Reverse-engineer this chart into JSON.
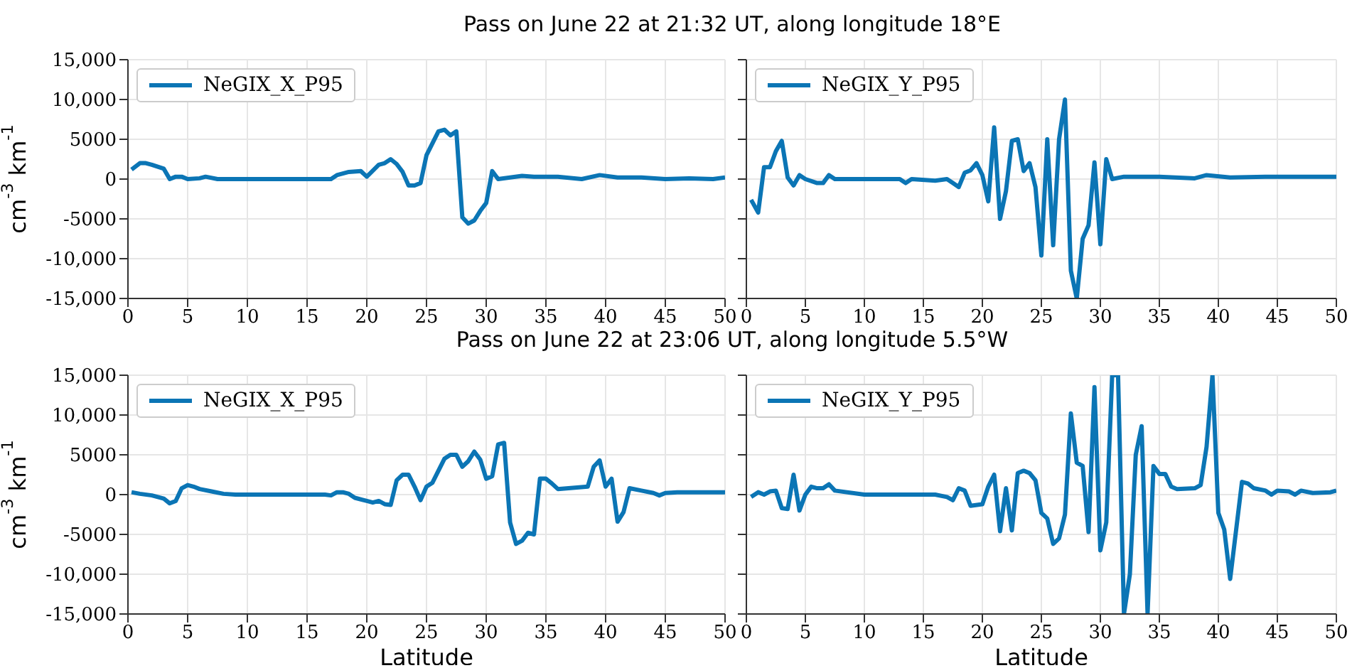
{
  "chart_data": [
    {
      "type": "line",
      "title": "Pass on June 22 at 21:32 UT, along longitude 18°E",
      "ylabel": "cm$^{-3}$ km$^{-1}$",
      "xlim": [
        0,
        50
      ],
      "xticks": [
        0,
        5,
        10,
        15,
        20,
        25,
        30,
        35,
        40,
        45,
        50
      ],
      "ylim": [
        -15000,
        15000
      ],
      "yticks": [
        {
          "value": -15000,
          "label": "-15,000"
        },
        {
          "value": -10000,
          "label": "-10,000"
        },
        -5000,
        0,
        5000,
        {
          "value": 10000,
          "label": "10,000"
        },
        {
          "value": 15000,
          "label": "15,000"
        }
      ],
      "grid": true,
      "legend": "top left",
      "x": [
        0.3,
        1,
        1.5,
        2,
        3,
        3.5,
        4,
        4.5,
        5,
        6,
        6.5,
        7.5,
        10,
        13,
        15,
        17,
        17.5,
        18.5,
        19.5,
        20,
        21,
        21.5,
        22,
        22.5,
        23,
        23.5,
        24,
        24.5,
        25,
        25.5,
        26,
        26.5,
        27,
        27.5,
        28,
        28.5,
        29,
        29.5,
        30,
        30.5,
        31,
        32,
        33,
        34,
        36,
        38,
        39.5,
        41,
        43,
        45,
        47,
        49,
        50
      ],
      "series": [
        {
          "name": "NeGIX_X_P95",
          "color": "#0b75b5",
          "values": [
            1200,
            2000,
            2000,
            1800,
            1300,
            0,
            300,
            300,
            0,
            100,
            300,
            0,
            0,
            0,
            0,
            0,
            500,
            900,
            1000,
            300,
            1800,
            2000,
            2500,
            1900,
            900,
            -800,
            -800,
            -500,
            3000,
            4500,
            6000,
            6200,
            5500,
            6000,
            -4800,
            -5600,
            -5200,
            -4000,
            -3000,
            1000,
            0,
            200,
            400,
            300,
            300,
            0,
            500,
            200,
            200,
            0,
            100,
            0,
            200
          ]
        }
      ]
    },
    {
      "type": "line",
      "xlim": [
        0,
        50
      ],
      "xticks": [
        0,
        5,
        10,
        15,
        20,
        25,
        30,
        35,
        40,
        45,
        50
      ],
      "ylim": [
        -15000,
        15000
      ],
      "yticks": [
        -15000,
        -10000,
        -5000,
        0,
        5000,
        10000,
        15000
      ],
      "grid": true,
      "legend": "top left",
      "tick_labels": "x",
      "x": [
        0.4,
        1,
        1.5,
        2,
        2.5,
        3,
        3.5,
        4,
        4.5,
        5,
        6,
        6.5,
        7,
        7.5,
        13,
        13.5,
        14,
        16,
        17,
        17.5,
        18,
        18.5,
        19,
        19.5,
        20,
        20.5,
        21,
        21.5,
        22,
        22.5,
        23,
        23.5,
        24,
        24.5,
        25,
        25.5,
        26,
        26.5,
        27,
        27.5,
        28,
        28.5,
        29,
        29.5,
        30,
        30.5,
        31,
        32,
        33,
        35,
        38,
        39,
        41,
        44,
        50
      ],
      "series": [
        {
          "name": "NeGIX_Y_P95",
          "color": "#0b75b5",
          "values": [
            -2600,
            -4200,
            1500,
            1500,
            3500,
            4800,
            200,
            -800,
            500,
            0,
            -500,
            -500,
            500,
            0,
            0,
            -500,
            0,
            -200,
            0,
            -500,
            -1000,
            800,
            1100,
            2000,
            500,
            -2800,
            6500,
            -5000,
            -1500,
            4800,
            5000,
            1000,
            2000,
            -1000,
            -9600,
            5000,
            -8300,
            5000,
            10000,
            -11500,
            -15000,
            -7500,
            -5800,
            2100,
            -8200,
            2500,
            0,
            300,
            300,
            300,
            100,
            500,
            200,
            300,
            300
          ]
        }
      ]
    },
    {
      "type": "line",
      "title": "Pass on June 22 at 23:06 UT, along longitude 5.5°W",
      "xlabel": "Latitude",
      "ylabel": "cm$^{-3}$ km$^{-1}$",
      "xlim": [
        0,
        50
      ],
      "xticks": [
        0,
        5,
        10,
        15,
        20,
        25,
        30,
        35,
        40,
        45,
        50
      ],
      "ylim": [
        -15000,
        15000
      ],
      "yticks": [
        {
          "value": -15000,
          "label": "-15,000"
        },
        {
          "value": -10000,
          "label": "-10,000"
        },
        -5000,
        0,
        5000,
        {
          "value": 10000,
          "label": "10,000"
        },
        {
          "value": 15000,
          "label": "15,000"
        }
      ],
      "grid": true,
      "legend": "top left",
      "x": [
        0.3,
        1,
        2,
        3,
        3.5,
        4,
        4.5,
        5,
        5.5,
        6,
        7,
        8,
        9,
        15,
        16.5,
        17,
        17.5,
        18,
        18.5,
        19,
        20,
        20.5,
        21,
        21.5,
        22,
        22.5,
        23,
        23.5,
        24,
        24.5,
        25,
        25.5,
        26,
        26.5,
        27,
        27.5,
        28,
        28.5,
        29,
        29.5,
        30,
        30.5,
        31,
        31.5,
        32,
        32.5,
        33,
        33.5,
        34,
        34.5,
        35,
        35.5,
        36,
        38.5,
        39,
        39.5,
        40,
        40.5,
        41,
        41.5,
        42,
        43,
        44,
        44.5,
        45,
        46,
        48,
        50
      ],
      "series": [
        {
          "name": "NeGIX_X_P95",
          "color": "#0b75b5",
          "values": [
            300,
            100,
            -100,
            -500,
            -1100,
            -800,
            800,
            1200,
            1000,
            700,
            400,
            100,
            0,
            0,
            0,
            -100,
            300,
            300,
            100,
            -400,
            -800,
            -1000,
            -800,
            -1200,
            -1300,
            1800,
            2500,
            2500,
            1000,
            -700,
            1000,
            1500,
            3000,
            4500,
            5000,
            5000,
            3500,
            4200,
            5400,
            4400,
            2000,
            2300,
            6300,
            6500,
            -3500,
            -6200,
            -5800,
            -4800,
            -5000,
            2000,
            2000,
            1400,
            700,
            1000,
            3500,
            4300,
            1000,
            2000,
            -3400,
            -2200,
            800,
            500,
            200,
            -100,
            200,
            300,
            300,
            300
          ]
        }
      ]
    },
    {
      "type": "line",
      "xlabel": "Latitude",
      "xlim": [
        0,
        50
      ],
      "xticks": [
        0,
        5,
        10,
        15,
        20,
        25,
        30,
        35,
        40,
        45,
        50
      ],
      "ylim": [
        -15000,
        15000
      ],
      "yticks": [
        -15000,
        -10000,
        -5000,
        0,
        5000,
        10000,
        15000
      ],
      "grid": true,
      "legend": "top left",
      "tick_labels": "x",
      "x": [
        0.4,
        1,
        1.5,
        2,
        2.5,
        3,
        3.5,
        4,
        4.5,
        5,
        5.5,
        6,
        6.5,
        7,
        7.5,
        10,
        16,
        17,
        17.5,
        18,
        18.5,
        19,
        20,
        20.5,
        21,
        21.5,
        22,
        22.5,
        23,
        23.5,
        24,
        24.5,
        25,
        25.5,
        26,
        26.5,
        27,
        27.5,
        28,
        28.5,
        29,
        29.5,
        30,
        30.5,
        31,
        31.5,
        32,
        32.5,
        33,
        33.5,
        34,
        34.5,
        35,
        35.5,
        36,
        36.5,
        38,
        38.5,
        39,
        39.5,
        40,
        40.5,
        41,
        42,
        42.5,
        43,
        44,
        44.5,
        45,
        46,
        46.5,
        47,
        48,
        49.5,
        50
      ],
      "series": [
        {
          "name": "NeGIX_Y_P95",
          "color": "#0b75b5",
          "values": [
            -300,
            300,
            0,
            400,
            500,
            -1700,
            -1800,
            2500,
            -2000,
            0,
            1000,
            800,
            800,
            1300,
            500,
            0,
            0,
            -300,
            -700,
            800,
            500,
            -1400,
            -1200,
            1000,
            2500,
            -4600,
            800,
            -4500,
            2700,
            3000,
            2700,
            1800,
            -2300,
            -3000,
            -6200,
            -5500,
            -2500,
            10200,
            4000,
            3600,
            -4700,
            13500,
            -7000,
            -3500,
            15000,
            15000,
            -15000,
            -10000,
            5000,
            8600,
            -15000,
            3600,
            2600,
            2600,
            1000,
            700,
            800,
            1200,
            6000,
            15000,
            -2300,
            -4400,
            -10600,
            1600,
            1400,
            800,
            500,
            0,
            500,
            400,
            0,
            500,
            200,
            300,
            500
          ]
        }
      ]
    }
  ]
}
